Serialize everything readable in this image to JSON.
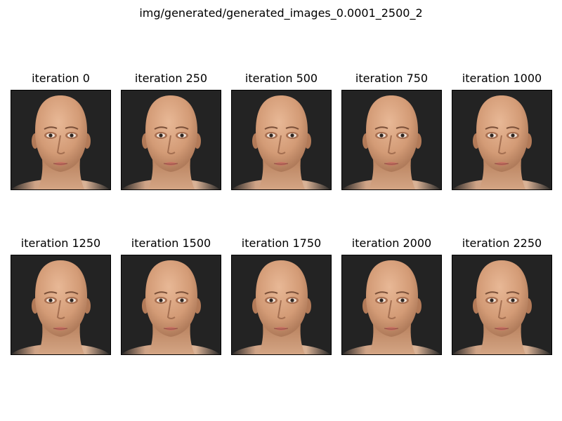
{
  "figure": {
    "suptitle": "img/generated/generated_images_0.0001_2500_2"
  },
  "panels": [
    {
      "title": "iteration 0",
      "image": "generated-face"
    },
    {
      "title": "iteration 250",
      "image": "generated-face"
    },
    {
      "title": "iteration 500",
      "image": "generated-face"
    },
    {
      "title": "iteration 750",
      "image": "generated-face"
    },
    {
      "title": "iteration 1000",
      "image": "generated-face"
    },
    {
      "title": "iteration 1250",
      "image": "generated-face"
    },
    {
      "title": "iteration 1500",
      "image": "generated-face"
    },
    {
      "title": "iteration 1750",
      "image": "generated-face"
    },
    {
      "title": "iteration 2000",
      "image": "generated-face"
    },
    {
      "title": "iteration 2250",
      "image": "generated-face"
    }
  ],
  "colors": {
    "background": "#232323",
    "skin": "#d9a27e",
    "frame": "#000000"
  }
}
